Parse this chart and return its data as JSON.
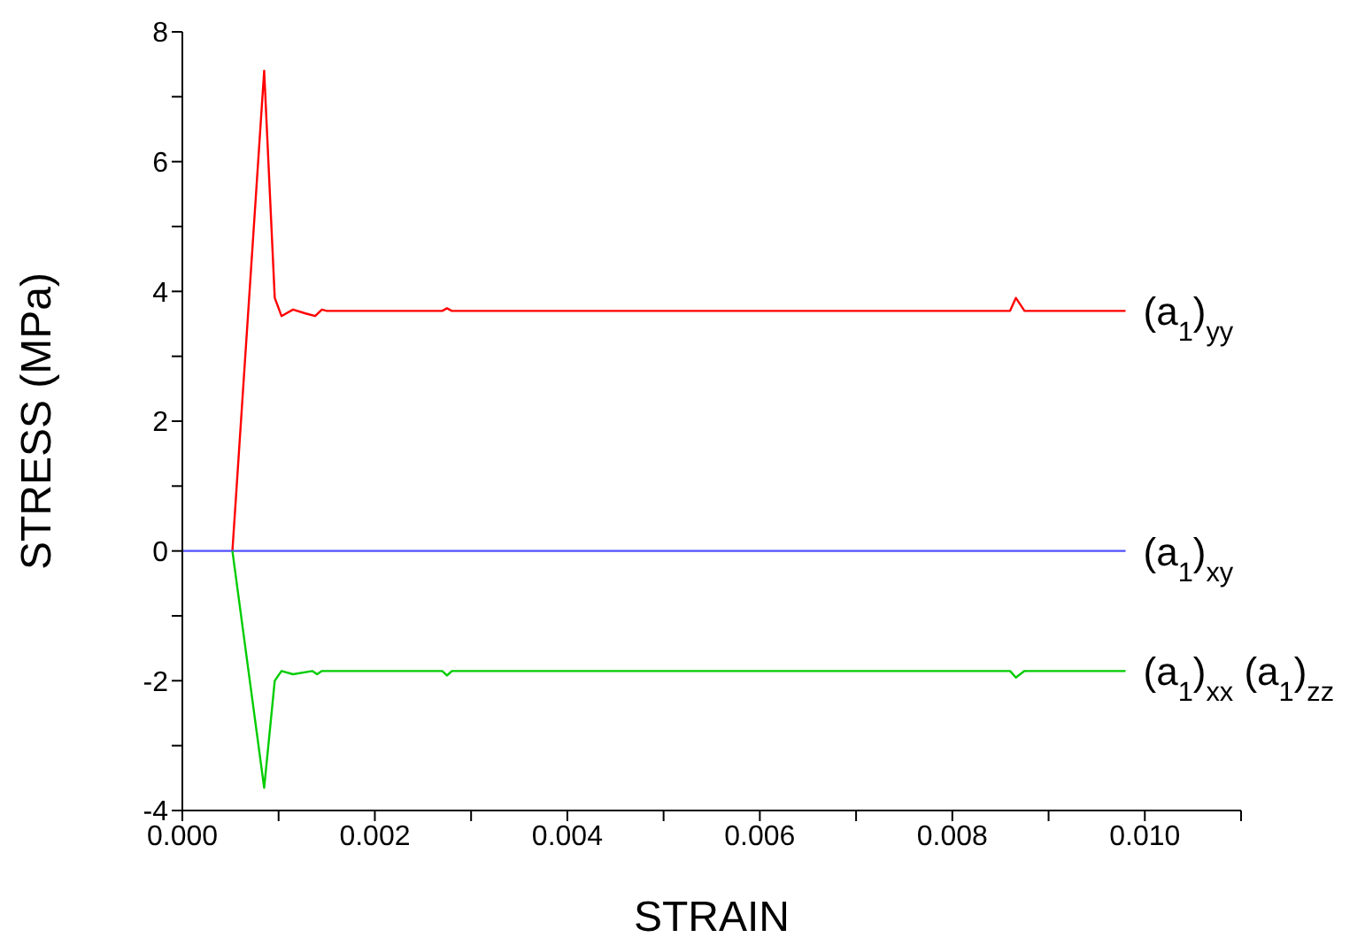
{
  "chart_data": {
    "type": "line",
    "xlabel": "STRAIN",
    "ylabel": "STRESS (MPa)",
    "xlim": [
      0,
      0.011
    ],
    "xticks": [
      {
        "value": 0,
        "label": "0.000"
      },
      {
        "value": 0.001,
        "label": null
      },
      {
        "value": 0.002,
        "label": "0.002"
      },
      {
        "value": 0.003,
        "label": null
      },
      {
        "value": 0.004,
        "label": "0.004"
      },
      {
        "value": 0.005,
        "label": null
      },
      {
        "value": 0.006,
        "label": "0.006"
      },
      {
        "value": 0.007,
        "label": null
      },
      {
        "value": 0.008,
        "label": "0.008"
      },
      {
        "value": 0.009,
        "label": null
      },
      {
        "value": 0.01,
        "label": "0.010"
      },
      {
        "value": 0.011,
        "label": null
      }
    ],
    "ylim": [
      -4,
      8
    ],
    "yticks": [
      -4,
      {
        "value": -3,
        "label": null
      },
      -2,
      {
        "value": -1,
        "label": null
      },
      0,
      {
        "value": 1,
        "label": null
      },
      2,
      {
        "value": 3,
        "label": null
      },
      4,
      {
        "value": 5,
        "label": null
      },
      6,
      {
        "value": 7,
        "label": null
      },
      8
    ],
    "grid": false,
    "legend": false,
    "marker": "none",
    "line_style": "solid",
    "series": [
      {
        "name": "(a$_{1}$)$_{yy}$",
        "color": "#ff0000",
        "x": [
          0.00052,
          0.00085,
          0.00096,
          0.00103,
          0.00115,
          0.00128,
          0.00138,
          0.00145,
          0.0015,
          0.0027,
          0.00275,
          0.0028,
          0.0086,
          0.00866,
          0.00875,
          0.0098
        ],
        "values": [
          0,
          7.4,
          3.9,
          3.62,
          3.72,
          3.66,
          3.62,
          3.72,
          3.7,
          3.7,
          3.74,
          3.7,
          3.7,
          3.9,
          3.7,
          3.7
        ]
      },
      {
        "name": "(a$_{1}$)$_{xy}$",
        "color": "#5050ff",
        "x": [
          0,
          0.0098
        ],
        "values": [
          0,
          0
        ]
      },
      {
        "name": "(a$_{1}$)$_{xx}$ (a$_{1}$)$_{zz}$",
        "color": "#00cc00",
        "x": [
          0.00052,
          0.00085,
          0.00096,
          0.00103,
          0.00115,
          0.00135,
          0.0014,
          0.00145,
          0.0027,
          0.00275,
          0.0028,
          0.0086,
          0.00866,
          0.00875,
          0.0098
        ],
        "values": [
          0,
          -3.65,
          -2.0,
          -1.85,
          -1.9,
          -1.85,
          -1.9,
          -1.85,
          -1.85,
          -1.92,
          -1.85,
          -1.85,
          -1.95,
          -1.85,
          -1.85
        ]
      }
    ]
  }
}
